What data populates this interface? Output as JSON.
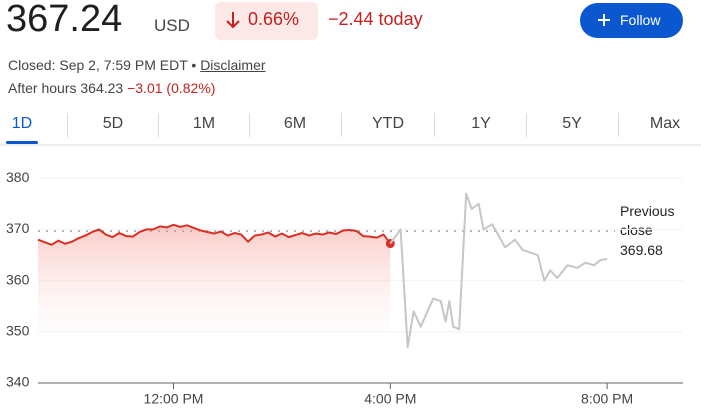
{
  "header": {
    "price": 367.24,
    "currency": "USD",
    "change_pct": "0.66%",
    "change_today": "−2.44 today",
    "follow": "Follow",
    "closed_text": "Closed: Sep 2, 7:59 PM EDT",
    "separator": "•",
    "disclaimer": "Disclaimer",
    "after_hours_label": "After hours",
    "after_hours_price": 364.23,
    "after_hours_change": "−3.01 (0.82%)"
  },
  "tabs": [
    "1D",
    "5D",
    "1M",
    "6M",
    "YTD",
    "1Y",
    "5Y",
    "Max"
  ],
  "chart_data": {
    "type": "line",
    "previous_close_label": "Previous close",
    "previous_close": 369.68,
    "xlim": [
      9.5,
      21.4
    ],
    "xticks": [
      {
        "value": 12,
        "label": "12:00 PM"
      },
      {
        "value": 16,
        "label": "4:00 PM"
      },
      {
        "value": 20,
        "label": "8:00 PM"
      }
    ],
    "ylim": [
      340,
      382
    ],
    "yticks": [
      340,
      350,
      360,
      370,
      380
    ],
    "series": [
      {
        "color": "#d93025",
        "x": [
          9.5,
          9.625,
          9.75,
          9.875,
          10,
          10.125,
          10.25,
          10.375,
          10.5,
          10.625,
          10.75,
          10.875,
          11,
          11.125,
          11.25,
          11.375,
          11.5,
          11.625,
          11.75,
          11.875,
          12,
          12.125,
          12.25,
          12.375,
          12.5,
          12.625,
          12.75,
          12.875,
          13,
          13.125,
          13.25,
          13.375,
          13.5,
          13.625,
          13.75,
          13.875,
          14,
          14.125,
          14.25,
          14.375,
          14.5,
          14.625,
          14.75,
          14.875,
          15,
          15.125,
          15.25,
          15.375,
          15.5,
          15.625,
          15.75,
          15.875,
          16
        ],
        "values": [
          368,
          367.5,
          367,
          367.8,
          367.2,
          367.6,
          368.3,
          368.8,
          369.5,
          370,
          369,
          368.5,
          369.3,
          368.7,
          368.6,
          369.5,
          370,
          370,
          370.6,
          370.4,
          370.9,
          370.5,
          370.8,
          370.3,
          369.8,
          369.5,
          369.2,
          369.6,
          368.8,
          369.3,
          369,
          367.6,
          368.8,
          369,
          369.4,
          368.6,
          369.2,
          368.5,
          368.9,
          369.3,
          368.8,
          369.2,
          369,
          369.4,
          369.1,
          369.8,
          369.9,
          369.7,
          368.7,
          368.6,
          368.4,
          369,
          367.24
        ]
      },
      {
        "color": "#c6c6c6",
        "x": [
          16,
          16.19,
          16.32,
          16.43,
          16.56,
          16.79,
          16.93,
          17.02,
          17.09,
          17.16,
          17.27,
          17.4,
          17.5,
          17.63,
          17.72,
          17.88,
          18.12,
          18.3,
          18.44,
          18.72,
          18.84,
          18.95,
          19.08,
          19.27,
          19.45,
          19.6,
          19.76,
          19.87,
          20
        ],
        "values": [
          367.24,
          370,
          347,
          354,
          351,
          356.5,
          356,
          352,
          356,
          351,
          350.5,
          377,
          374,
          375,
          370,
          371,
          366.5,
          368,
          366,
          365,
          360,
          362,
          360.5,
          363,
          362.5,
          363.5,
          363,
          364,
          364.23
        ]
      }
    ]
  }
}
